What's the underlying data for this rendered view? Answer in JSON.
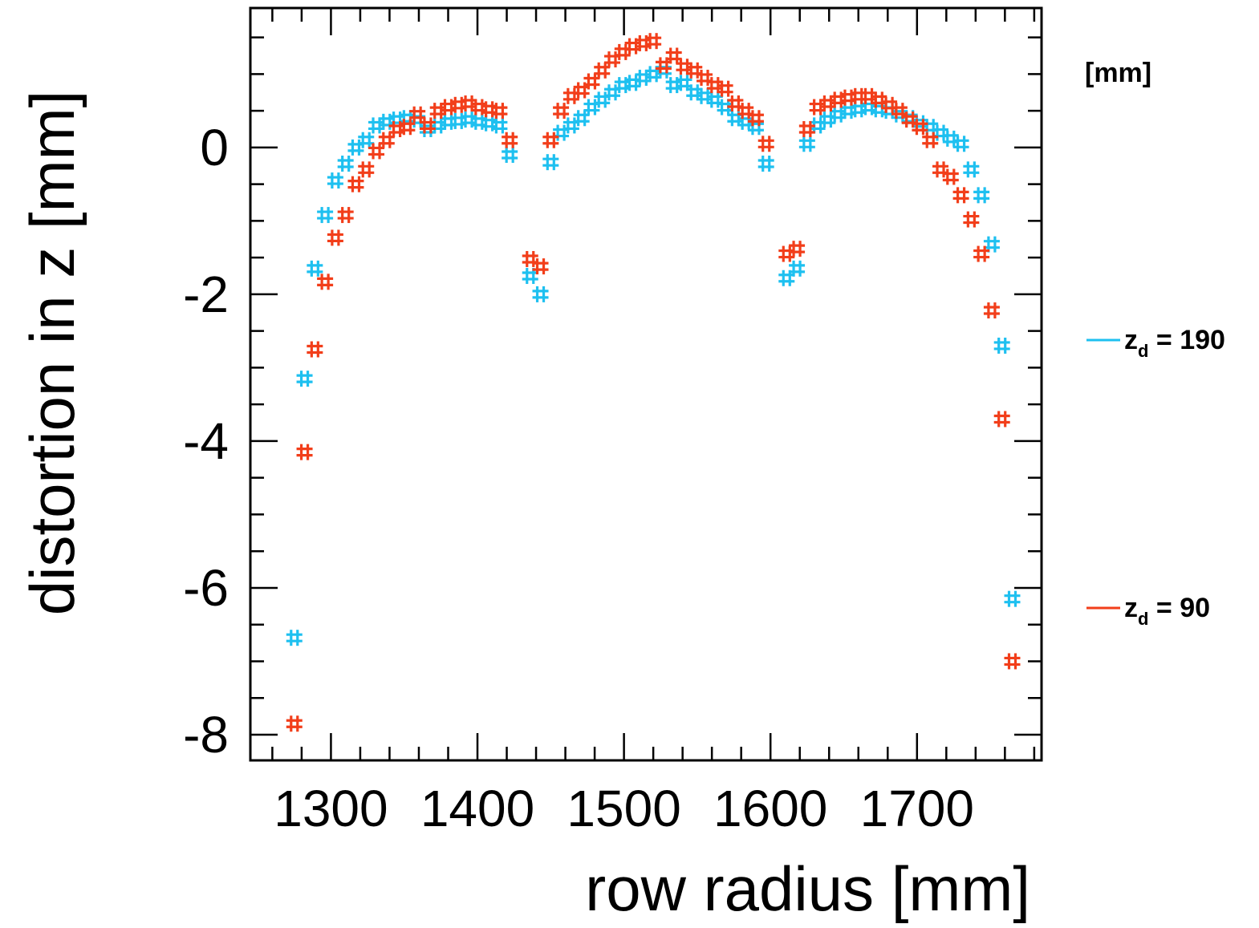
{
  "chart_data": {
    "type": "scatter",
    "title": "",
    "xlabel": "row radius [mm]",
    "ylabel": "distortion in z [mm]",
    "xlim": [
      1245,
      1785
    ],
    "ylim": [
      -8.35,
      1.9
    ],
    "xticks": [
      1300,
      1400,
      1500,
      1600,
      1700
    ],
    "xtick_labels": [
      "1300",
      "1400",
      "1500",
      "1600",
      "1700"
    ],
    "yticks": [
      0,
      -2,
      -4,
      -6,
      -8
    ],
    "ytick_labels": [
      "0",
      "-2",
      "-4",
      "-6",
      "-8"
    ],
    "grid": false,
    "legend_position": "right",
    "legend_unit": "[mm]",
    "series": [
      {
        "name": "z_d = 190",
        "legend_main": "z",
        "legend_sub": "d",
        "legend_value": " = 190",
        "color": "#1ec0f0",
        "x": [
          1275,
          1282,
          1289,
          1296,
          1303,
          1310,
          1317,
          1324,
          1331,
          1338,
          1345,
          1352,
          1359,
          1366,
          1373,
          1380,
          1387,
          1394,
          1401,
          1408,
          1415,
          1422,
          1436,
          1443,
          1450,
          1457,
          1464,
          1471,
          1478,
          1485,
          1492,
          1499,
          1506,
          1513,
          1520,
          1527,
          1534,
          1541,
          1548,
          1555,
          1562,
          1569,
          1576,
          1583,
          1590,
          1597,
          1611,
          1618,
          1625,
          1632,
          1639,
          1646,
          1653,
          1660,
          1667,
          1674,
          1681,
          1688,
          1695,
          1702,
          1709,
          1716,
          1723,
          1730,
          1737,
          1744,
          1751,
          1758,
          1765
        ],
        "y": [
          -6.68,
          -3.15,
          -1.65,
          -0.92,
          -0.45,
          -0.22,
          0.0,
          0.1,
          0.3,
          0.35,
          0.38,
          0.4,
          0.38,
          0.25,
          0.3,
          0.35,
          0.36,
          0.38,
          0.35,
          0.33,
          0.3,
          -0.1,
          -1.75,
          -2.0,
          -0.2,
          0.2,
          0.3,
          0.4,
          0.55,
          0.65,
          0.75,
          0.85,
          0.88,
          0.95,
          1.0,
          1.05,
          0.85,
          0.88,
          0.75,
          0.7,
          0.65,
          0.55,
          0.4,
          0.35,
          0.28,
          -0.22,
          -1.78,
          -1.65,
          0.05,
          0.3,
          0.38,
          0.45,
          0.5,
          0.52,
          0.55,
          0.52,
          0.5,
          0.45,
          0.4,
          0.33,
          0.28,
          0.2,
          0.12,
          0.05,
          -0.3,
          -0.65,
          -1.32,
          -2.7,
          -6.15
        ]
      },
      {
        "name": "z_d = 90",
        "legend_main": "z",
        "legend_sub": "d",
        "legend_value": " = 90",
        "color": "#f23e1a",
        "x": [
          1275,
          1282,
          1289,
          1296,
          1303,
          1310,
          1317,
          1324,
          1331,
          1338,
          1345,
          1352,
          1359,
          1366,
          1373,
          1380,
          1387,
          1394,
          1401,
          1408,
          1415,
          1422,
          1436,
          1443,
          1450,
          1457,
          1464,
          1471,
          1478,
          1485,
          1492,
          1499,
          1506,
          1513,
          1520,
          1527,
          1534,
          1541,
          1548,
          1555,
          1562,
          1569,
          1576,
          1583,
          1590,
          1597,
          1611,
          1618,
          1625,
          1632,
          1639,
          1646,
          1653,
          1660,
          1667,
          1674,
          1681,
          1688,
          1695,
          1702,
          1709,
          1716,
          1723,
          1730,
          1737,
          1744,
          1751,
          1758,
          1765
        ],
        "y": [
          -7.85,
          -4.15,
          -2.75,
          -1.83,
          -1.23,
          -0.92,
          -0.5,
          -0.3,
          -0.05,
          0.1,
          0.25,
          0.28,
          0.45,
          0.3,
          0.5,
          0.55,
          0.58,
          0.6,
          0.55,
          0.52,
          0.5,
          0.1,
          -1.52,
          -1.62,
          0.1,
          0.5,
          0.7,
          0.78,
          0.9,
          1.05,
          1.2,
          1.3,
          1.38,
          1.42,
          1.45,
          1.12,
          1.25,
          1.1,
          1.05,
          0.95,
          0.85,
          0.8,
          0.6,
          0.5,
          0.4,
          0.05,
          -1.45,
          -1.38,
          0.25,
          0.55,
          0.6,
          0.65,
          0.68,
          0.7,
          0.7,
          0.65,
          0.58,
          0.5,
          0.38,
          0.28,
          0.1,
          -0.3,
          -0.4,
          -0.65,
          -0.98,
          -1.45,
          -2.22,
          -3.7,
          -7.0
        ]
      }
    ]
  }
}
